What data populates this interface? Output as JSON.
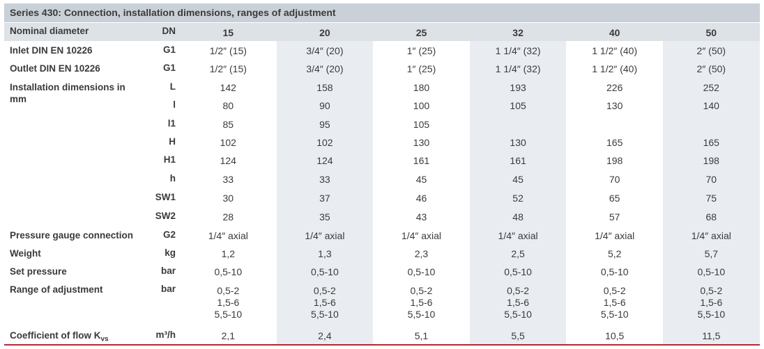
{
  "title": "Series 430: Connection, installation dimensions, ranges of adjustment",
  "header": {
    "label": "Nominal diameter",
    "unit": "DN",
    "values": [
      "15",
      "20",
      "25",
      "32",
      "40",
      "50"
    ]
  },
  "rows": [
    {
      "label": "Inlet DIN EN 10226",
      "unit": "G1",
      "values": [
        "1/2″ (15)",
        "3/4″ (20)",
        "1″ (25)",
        "1 1/4″ (32)",
        "1 1/2″ (40)",
        "2″ (50)"
      ]
    },
    {
      "label": "Outlet DIN EN 10226",
      "unit": "G1",
      "values": [
        "1/2″ (15)",
        "3/4″ (20)",
        "1″ (25)",
        "1 1/4″ (32)",
        "1 1/2″ (40)",
        "2″ (50)"
      ]
    },
    {
      "label": "Installation dimensions in mm",
      "unit": "L",
      "values": [
        "142",
        "158",
        "180",
        "193",
        "226",
        "252"
      ]
    },
    {
      "unit": "l",
      "values": [
        "80",
        "90",
        "100",
        "105",
        "130",
        "140"
      ]
    },
    {
      "unit": "l1",
      "values": [
        "85",
        "95",
        "105",
        null,
        null,
        null
      ]
    },
    {
      "unit": "H",
      "values": [
        "102",
        "102",
        "130",
        "130",
        "165",
        "165"
      ]
    },
    {
      "unit": "H1",
      "values": [
        "124",
        "124",
        "161",
        "161",
        "198",
        "198"
      ]
    },
    {
      "unit": "h",
      "values": [
        "33",
        "33",
        "45",
        "45",
        "70",
        "70"
      ]
    },
    {
      "unit": "SW1",
      "values": [
        "30",
        "37",
        "46",
        "52",
        "65",
        "75"
      ]
    },
    {
      "unit": "SW2",
      "values": [
        "28",
        "35",
        "43",
        "48",
        "57",
        "68"
      ]
    },
    {
      "label": "Pressure gauge connection",
      "unit": "G2",
      "values": [
        "1/4″ axial",
        "1/4″ axial",
        "1/4″ axial",
        "1/4″ axial",
        "1/4″ axial",
        "1/4″ axial"
      ]
    },
    {
      "label": "Weight",
      "unit": "kg",
      "values": [
        "1,2",
        "1,3",
        "2,3",
        "2,5",
        "5,2",
        "5,7"
      ]
    },
    {
      "label": "Set pressure",
      "unit": "bar",
      "values": [
        "0,5-10",
        "0,5-10",
        "0,5-10",
        "0,5-10",
        "0,5-10",
        "0,5-10"
      ]
    },
    {
      "label": "Range of adjustment",
      "unit": "bar",
      "values": [
        [
          "0,5-2",
          "1,5-6",
          "5,5-10"
        ],
        [
          "0,5-2",
          "1,5-6",
          "5,5-10"
        ],
        [
          "0,5-2",
          "1,5-6",
          "5,5-10"
        ],
        [
          "0,5-2",
          "1,5-6",
          "5,5-10"
        ],
        [
          "0,5-2",
          "1,5-6",
          "5,5-10"
        ],
        [
          "0,5-2",
          "1,5-6",
          "5,5-10"
        ]
      ]
    },
    {
      "label": "Coefficient of flow K",
      "label_sub": "vs",
      "unit": "m³/h",
      "values": [
        "2,1",
        "2,4",
        "5,1",
        "5,5",
        "10,5",
        "11,5"
      ]
    }
  ]
}
